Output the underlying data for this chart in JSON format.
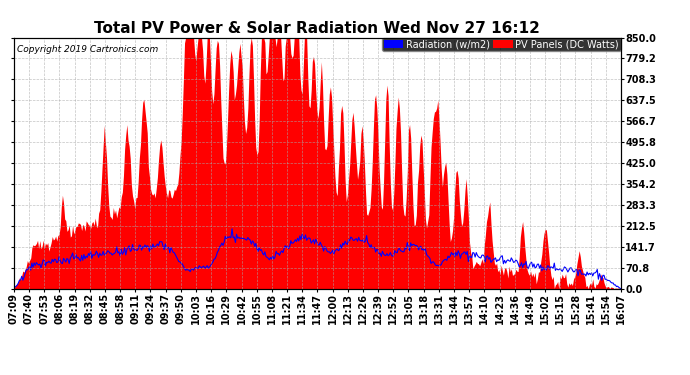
{
  "title": "Total PV Power & Solar Radiation Wed Nov 27 16:12",
  "copyright": "Copyright 2019 Cartronics.com",
  "legend_radiation": "Radiation (w/m2)",
  "legend_pv": "PV Panels (DC Watts)",
  "ymax": 850.0,
  "ymin": 0.0,
  "yticks": [
    0.0,
    70.8,
    141.7,
    212.5,
    283.3,
    354.2,
    425.0,
    495.8,
    566.7,
    637.5,
    708.3,
    779.2,
    850.0
  ],
  "background_color": "#ffffff",
  "grid_color": "#aaaaaa",
  "pv_color": "#ff0000",
  "radiation_color": "#0000ff",
  "title_fontsize": 11,
  "tick_fontsize": 7,
  "x_tick_labels": [
    "07:09",
    "07:40",
    "07:53",
    "08:06",
    "08:19",
    "08:32",
    "08:45",
    "08:58",
    "09:11",
    "09:24",
    "09:37",
    "09:50",
    "10:03",
    "10:16",
    "10:29",
    "10:42",
    "10:55",
    "11:08",
    "11:21",
    "11:34",
    "11:47",
    "12:00",
    "12:13",
    "12:26",
    "12:39",
    "12:52",
    "13:05",
    "13:18",
    "13:31",
    "13:44",
    "13:57",
    "14:10",
    "14:23",
    "14:36",
    "14:49",
    "15:02",
    "15:15",
    "15:28",
    "15:41",
    "15:54",
    "16:07"
  ]
}
